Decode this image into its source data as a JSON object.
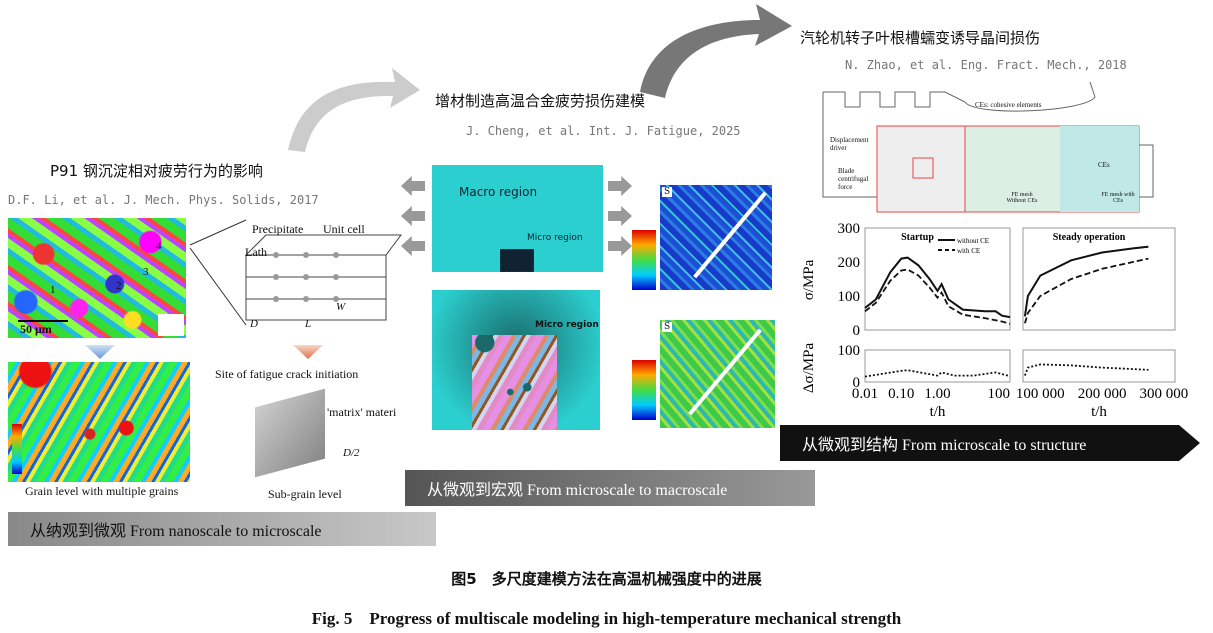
{
  "left_panel": {
    "title": "P91 钢沉淀相对疲劳行为的影响",
    "citation": "D.F. Li, et al. J. Mech. Phys. Solids, 2017",
    "labels": {
      "precipitate": "Precipitate",
      "unit_cell": "Unit cell",
      "lath": "Lath",
      "L": "L",
      "W": "W",
      "D": "D",
      "scale": "50 μm",
      "site": "Site of fatigue crack initiation",
      "matrix": "'matrix' materi",
      "D2": "D/2",
      "grain_level": "Grain level with multiple grains",
      "sub_grain": "Sub-grain level",
      "grains": [
        "1",
        "2",
        "3",
        "4"
      ]
    },
    "banner": "从纳观到微观 From nanoscale to microscale"
  },
  "middle_panel": {
    "title": "增材制造高温合金疲劳损伤建模",
    "citation": "J. Cheng, et al. Int. J. Fatigue, 2025",
    "macro_label": "Macro region",
    "micro_label": "Micro region",
    "micro_label_2": "Micro region",
    "s_label": "S",
    "banner": "从微观到宏观 From microscale to macroscale"
  },
  "right_panel": {
    "title": "汽轮机转子叶根槽蠕变诱导晶间损伤",
    "citation": "N. Zhao, et al. Eng. Fract. Mech., 2018",
    "diagram": {
      "ces": "CEs: cohesive elements",
      "displacement": "Displacement driver",
      "blade": "Blade centrifugal force",
      "fe_without": "FE mesh Without CEs",
      "fe_with": "FE mesh with CEs",
      "ces_short": "CEs"
    },
    "banner": "从微观到结构 From microscale to structure"
  },
  "chart_data": {
    "type": "line",
    "ylabel_top": "σ/MPa",
    "ylabel_bottom": "Δσ/MPa",
    "xlabel": "t/h",
    "panels": [
      {
        "title": "Startup",
        "xscale": "log",
        "xlim": [
          0.01,
          100
        ],
        "xticks": [
          "0.01",
          "0.10",
          "1.00",
          "100"
        ],
        "ylim_top": [
          0,
          300
        ],
        "yticks_top": [
          "0",
          "100",
          "200",
          "300"
        ],
        "ylim_bottom": [
          0,
          100
        ],
        "yticks_bottom": [
          "0",
          "100"
        ],
        "legend": [
          "without CE",
          "with CE"
        ],
        "series": [
          {
            "name": "without CE",
            "style": "solid",
            "x": [
              0.01,
              0.02,
              0.05,
              0.1,
              0.15,
              0.3,
              0.6,
              1.0,
              1.3,
              2,
              5,
              20,
              40,
              60,
              100
            ],
            "y": [
              65,
              90,
              170,
              210,
              213,
              190,
              150,
              115,
              135,
              90,
              60,
              55,
              55,
              42,
              38
            ]
          },
          {
            "name": "with CE",
            "style": "dashed",
            "x": [
              0.01,
              0.02,
              0.05,
              0.1,
              0.15,
              0.3,
              0.6,
              1.0,
              1.3,
              2,
              5,
              20,
              60,
              100
            ],
            "y": [
              55,
              80,
              145,
              175,
              178,
              160,
              125,
              95,
              110,
              70,
              45,
              35,
              25,
              18
            ]
          },
          {
            "style": "dotted",
            "axis": "bottom",
            "x": [
              0.01,
              0.1,
              0.15,
              1.0,
              1.3,
              3,
              10,
              40,
              100
            ],
            "y": [
              17,
              35,
              37,
              20,
              30,
              20,
              20,
              30,
              18
            ]
          }
        ]
      },
      {
        "title": "Steady operation",
        "xscale": "linear",
        "xlim": [
          72000,
          318000
        ],
        "xticks": [
          "100 000",
          "200 000",
          "300 000"
        ],
        "xtick_values": [
          100000,
          200000,
          300000
        ],
        "ylim_top": [
          0,
          300
        ],
        "ylim_bottom": [
          0,
          100
        ],
        "series": [
          {
            "name": "without CE",
            "style": "solid",
            "x": [
              75000,
              80000,
              100000,
              150000,
              200000,
              250000,
              275000
            ],
            "y": [
              40,
              100,
              160,
              205,
              228,
              240,
              245
            ]
          },
          {
            "name": "with CE",
            "style": "dashed",
            "x": [
              75000,
              80000,
              100000,
              150000,
              200000,
              275000
            ],
            "y": [
              20,
              50,
              100,
              150,
              180,
              210
            ]
          },
          {
            "style": "dotted",
            "axis": "bottom",
            "x": [
              75000,
              80000,
              100000,
              150000,
              200000,
              275000
            ],
            "y": [
              20,
              45,
              55,
              52,
              45,
              38
            ]
          }
        ]
      }
    ]
  },
  "caption": {
    "cn": "图5　多尺度建模方法在高温机械强度中的进展",
    "en": "Fig. 5　Progress of multiscale modeling in high-temperature mechanical strength"
  }
}
